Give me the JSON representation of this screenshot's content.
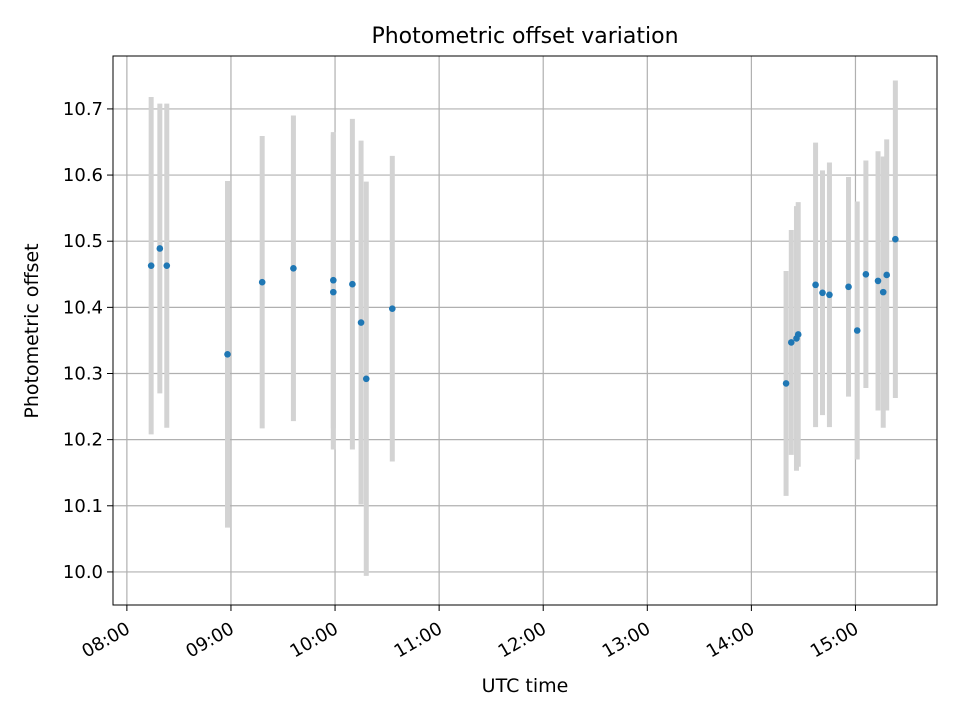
{
  "chart_data": {
    "type": "scatter",
    "title": "Photometric offset variation",
    "xlabel": "UTC time",
    "ylabel": "Photometric offset",
    "x_axis": {
      "kind": "time",
      "range": [
        "07:52",
        "15:47"
      ],
      "ticks": [
        "08:00",
        "09:00",
        "10:00",
        "11:00",
        "12:00",
        "13:00",
        "14:00",
        "15:00"
      ]
    },
    "y_axis": {
      "range": [
        9.95,
        10.78
      ],
      "ticks": [
        "10.0",
        "10.1",
        "10.2",
        "10.3",
        "10.4",
        "10.5",
        "10.6",
        "10.7"
      ]
    },
    "grid": true,
    "colors": {
      "point": "#1f77b4",
      "errorbar": "#d3d3d3",
      "grid": "#b0b0b0"
    },
    "points": [
      {
        "t": "08:14",
        "y": 10.463,
        "err": 0.255
      },
      {
        "t": "08:19",
        "y": 10.489,
        "err": 0.219
      },
      {
        "t": "08:23",
        "y": 10.463,
        "err": 0.245
      },
      {
        "t": "08:58",
        "y": 10.329,
        "err": 0.262
      },
      {
        "t": "09:18",
        "y": 10.438,
        "err": 0.221
      },
      {
        "t": "09:36",
        "y": 10.459,
        "err": 0.231
      },
      {
        "t": "09:59",
        "y": 10.441,
        "err": 0.224
      },
      {
        "t": "09:59",
        "y": 10.423,
        "err": 0.238
      },
      {
        "t": "10:10",
        "y": 10.435,
        "err": 0.25
      },
      {
        "t": "10:15",
        "y": 10.377,
        "err": 0.275
      },
      {
        "t": "10:18",
        "y": 10.292,
        "err": 0.298
      },
      {
        "t": "10:33",
        "y": 10.398,
        "err": 0.231
      },
      {
        "t": "14:20",
        "y": 10.285,
        "err": 0.17
      },
      {
        "t": "14:23",
        "y": 10.347,
        "err": 0.17
      },
      {
        "t": "14:26",
        "y": 10.353,
        "err": 0.2
      },
      {
        "t": "14:27",
        "y": 10.359,
        "err": 0.2
      },
      {
        "t": "14:37",
        "y": 10.434,
        "err": 0.215
      },
      {
        "t": "14:41",
        "y": 10.422,
        "err": 0.185
      },
      {
        "t": "14:45",
        "y": 10.419,
        "err": 0.2
      },
      {
        "t": "14:56",
        "y": 10.431,
        "err": 0.166
      },
      {
        "t": "15:01",
        "y": 10.365,
        "err": 0.195
      },
      {
        "t": "15:06",
        "y": 10.45,
        "err": 0.172
      },
      {
        "t": "15:13",
        "y": 10.44,
        "err": 0.196
      },
      {
        "t": "15:16",
        "y": 10.423,
        "err": 0.205
      },
      {
        "t": "15:18",
        "y": 10.449,
        "err": 0.205
      },
      {
        "t": "15:23",
        "y": 10.503,
        "err": 0.24
      }
    ]
  }
}
